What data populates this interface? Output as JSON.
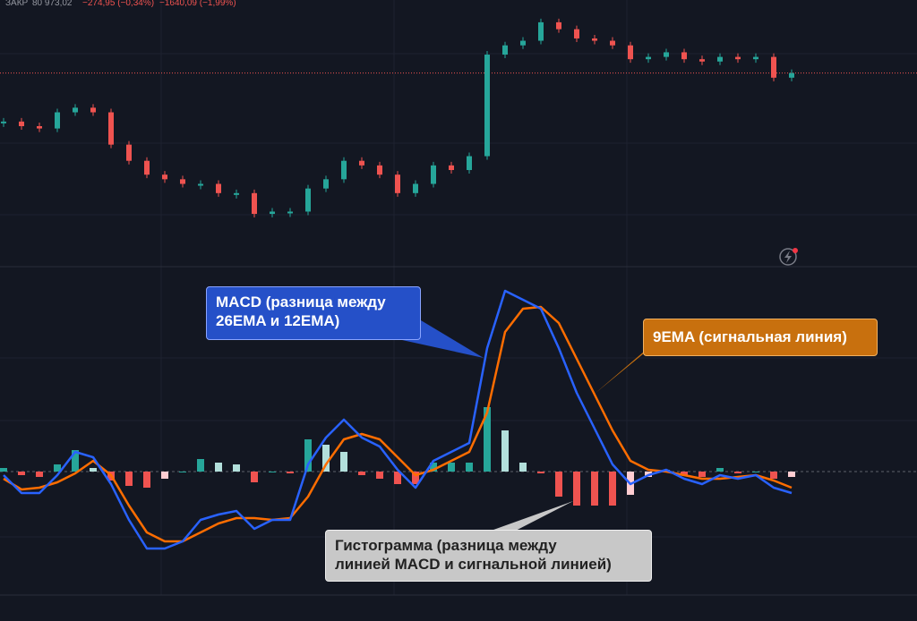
{
  "header": {
    "label": "ЗАКР",
    "price": "80 973,02",
    "change": "−274,95 (−0,34%)",
    "change_alt": "−1640,09 (−1,99%)"
  },
  "price": {
    "ylim": [
      0,
      100
    ],
    "up_color": "#26a69a",
    "down_color": "#ef5350",
    "closes": [
      52,
      50,
      49,
      56,
      58,
      56,
      42,
      35,
      29,
      27,
      25,
      25,
      21,
      21,
      12,
      13,
      13,
      23,
      27,
      35,
      33,
      29,
      21,
      25,
      33,
      31,
      37,
      81,
      85,
      87,
      95,
      92,
      88,
      87,
      85,
      79,
      80,
      82,
      79,
      78,
      80,
      79,
      80,
      71,
      73
    ]
  },
  "macd": {
    "ylim": [
      -70,
      115
    ],
    "macd_color": "#2962ff",
    "signal_color": "#ff6d00",
    "hist_colors": [
      "#26a69a",
      "#b2dfdb",
      "#ef5350",
      "#ffcdd2"
    ],
    "macd_line": [
      -2,
      -12,
      -12,
      -2,
      11,
      8,
      -7,
      -27,
      -43,
      -43,
      -39,
      -27,
      -24,
      -22,
      -32,
      -27,
      -27,
      4,
      19,
      29,
      19,
      14,
      1,
      -9,
      6,
      11,
      16,
      69,
      101,
      96,
      91,
      69,
      44,
      24,
      4,
      -7,
      -2,
      1,
      -4,
      -7,
      -2,
      -4,
      -2,
      -9,
      -12
    ],
    "signal_line": [
      -4,
      -10,
      -9,
      -6,
      -1,
      6,
      -2,
      -19,
      -34,
      -39,
      -39,
      -34,
      -29,
      -26,
      -26,
      -27,
      -26,
      -14,
      4,
      18,
      21,
      18,
      8,
      -2,
      1,
      6,
      11,
      33,
      78,
      91,
      92,
      83,
      63,
      43,
      23,
      6,
      1,
      0,
      -2,
      -4,
      -4,
      -3,
      -2,
      -5,
      -9
    ],
    "histogram": [
      2,
      -2,
      -3,
      4,
      12,
      2,
      -5,
      -8,
      -9,
      -4,
      0,
      7,
      5,
      4,
      -6,
      0,
      -1,
      18,
      15,
      11,
      -2,
      -4,
      -7,
      -7,
      5,
      5,
      5,
      36,
      23,
      5,
      -1,
      -14,
      -19,
      -19,
      -19,
      -13,
      -3,
      1,
      -2,
      -3,
      2,
      -1,
      0,
      -4,
      -3
    ]
  },
  "annotations": {
    "macd": [
      "MACD (разница между",
      "26EMA  и 12EMA)"
    ],
    "signal": [
      "9EMA (сигнальная линия)"
    ],
    "histogram": [
      "Гистограмма (разница между",
      "линией MACD и сигнальной линией)"
    ]
  }
}
